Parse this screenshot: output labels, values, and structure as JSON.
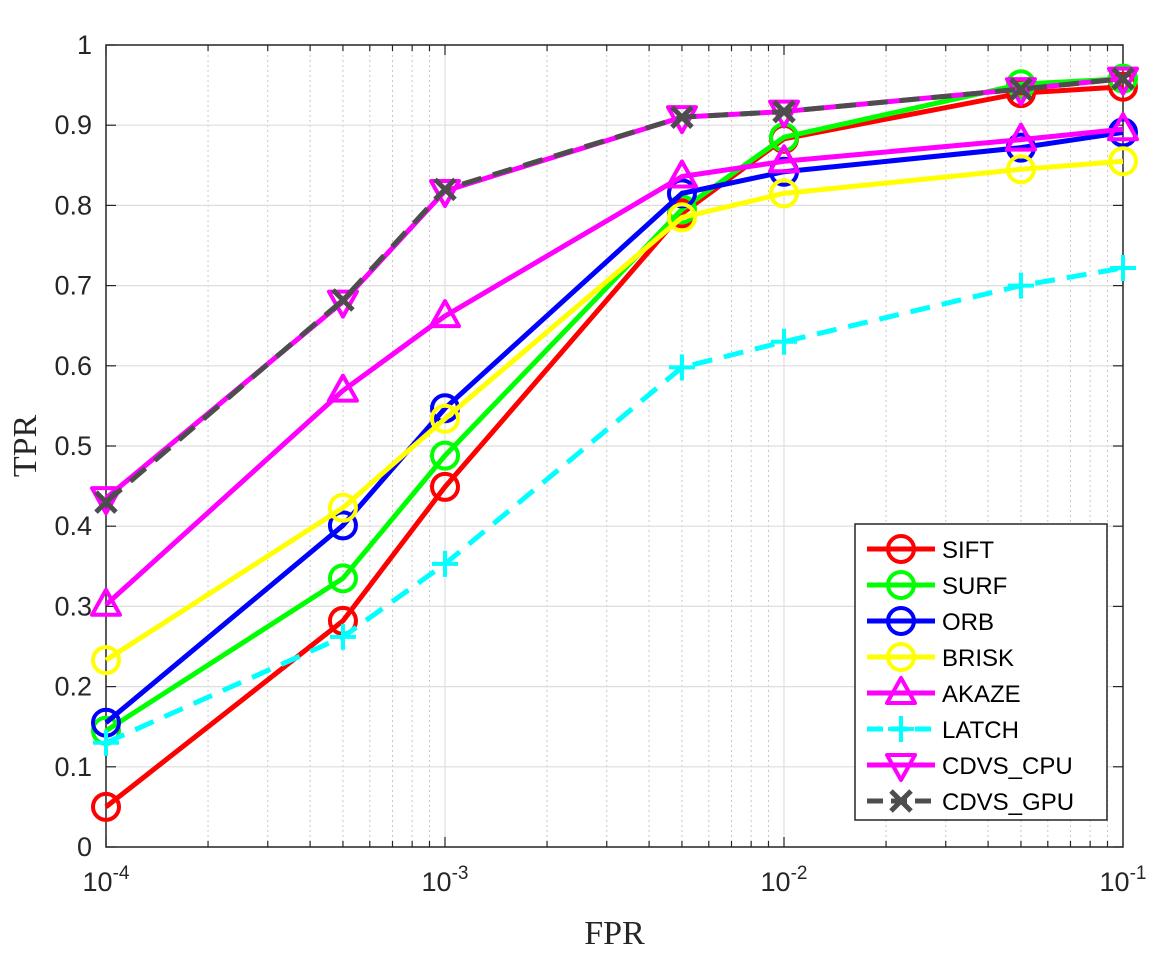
{
  "chart_data": {
    "type": "line",
    "x_scale": "log",
    "xlabel": "FPR",
    "ylabel": "TPR",
    "xlim": [
      0.0001,
      0.1
    ],
    "ylim": [
      0,
      1
    ],
    "grid": true,
    "legend_position": "bottom-right",
    "x": [
      0.0001,
      0.0005,
      0.001,
      0.005,
      0.01,
      0.05,
      0.1
    ],
    "x_ticks": [
      {
        "value": 0.0001,
        "base": "10",
        "exp": "-4"
      },
      {
        "value": 0.001,
        "base": "10",
        "exp": "-3"
      },
      {
        "value": 0.01,
        "base": "10",
        "exp": "-2"
      },
      {
        "value": 0.1,
        "base": "10",
        "exp": "-1"
      }
    ],
    "y_ticks": [
      {
        "value": 0,
        "label": "0"
      },
      {
        "value": 0.1,
        "label": "0.1"
      },
      {
        "value": 0.2,
        "label": "0.2"
      },
      {
        "value": 0.3,
        "label": "0.3"
      },
      {
        "value": 0.4,
        "label": "0.4"
      },
      {
        "value": 0.5,
        "label": "0.5"
      },
      {
        "value": 0.6,
        "label": "0.6"
      },
      {
        "value": 0.7,
        "label": "0.7"
      },
      {
        "value": 0.8,
        "label": "0.8"
      },
      {
        "value": 0.9,
        "label": "0.9"
      },
      {
        "value": 1,
        "label": "1"
      }
    ],
    "series": [
      {
        "name": "SIFT",
        "color": "#ff0000",
        "marker": "circle",
        "dash": "solid",
        "values": [
          0.05,
          0.282,
          0.449,
          0.79,
          0.883,
          0.94,
          0.948
        ]
      },
      {
        "name": "SURF",
        "color": "#00ff00",
        "marker": "circle",
        "dash": "solid",
        "values": [
          0.145,
          0.335,
          0.488,
          0.795,
          0.885,
          0.951,
          0.958
        ]
      },
      {
        "name": "ORB",
        "color": "#0000ff",
        "marker": "circle",
        "dash": "solid",
        "values": [
          0.155,
          0.401,
          0.547,
          0.815,
          0.842,
          0.872,
          0.891
        ]
      },
      {
        "name": "BRISK",
        "color": "#ffff00",
        "marker": "circle",
        "dash": "solid",
        "values": [
          0.233,
          0.423,
          0.534,
          0.785,
          0.815,
          0.845,
          0.855
        ]
      },
      {
        "name": "AKAZE",
        "color": "#ff00ff",
        "marker": "triangle-up",
        "dash": "solid",
        "values": [
          0.302,
          0.569,
          0.662,
          0.836,
          0.855,
          0.882,
          0.895
        ]
      },
      {
        "name": "LATCH",
        "color": "#00ffff",
        "marker": "plus",
        "dash": "dashed",
        "values": [
          0.13,
          0.262,
          0.353,
          0.598,
          0.63,
          0.7,
          0.722
        ]
      },
      {
        "name": "CDVS_CPU",
        "color": "#ff00ff",
        "marker": "triangle-down",
        "dash": "solid",
        "values": [
          0.435,
          0.68,
          0.818,
          0.91,
          0.917,
          0.945,
          0.958
        ]
      },
      {
        "name": "CDVS_GPU",
        "color": "#4d4d4d",
        "marker": "x",
        "dash": "dashed",
        "values": [
          0.43,
          0.682,
          0.82,
          0.91,
          0.917,
          0.945,
          0.958
        ]
      }
    ]
  }
}
